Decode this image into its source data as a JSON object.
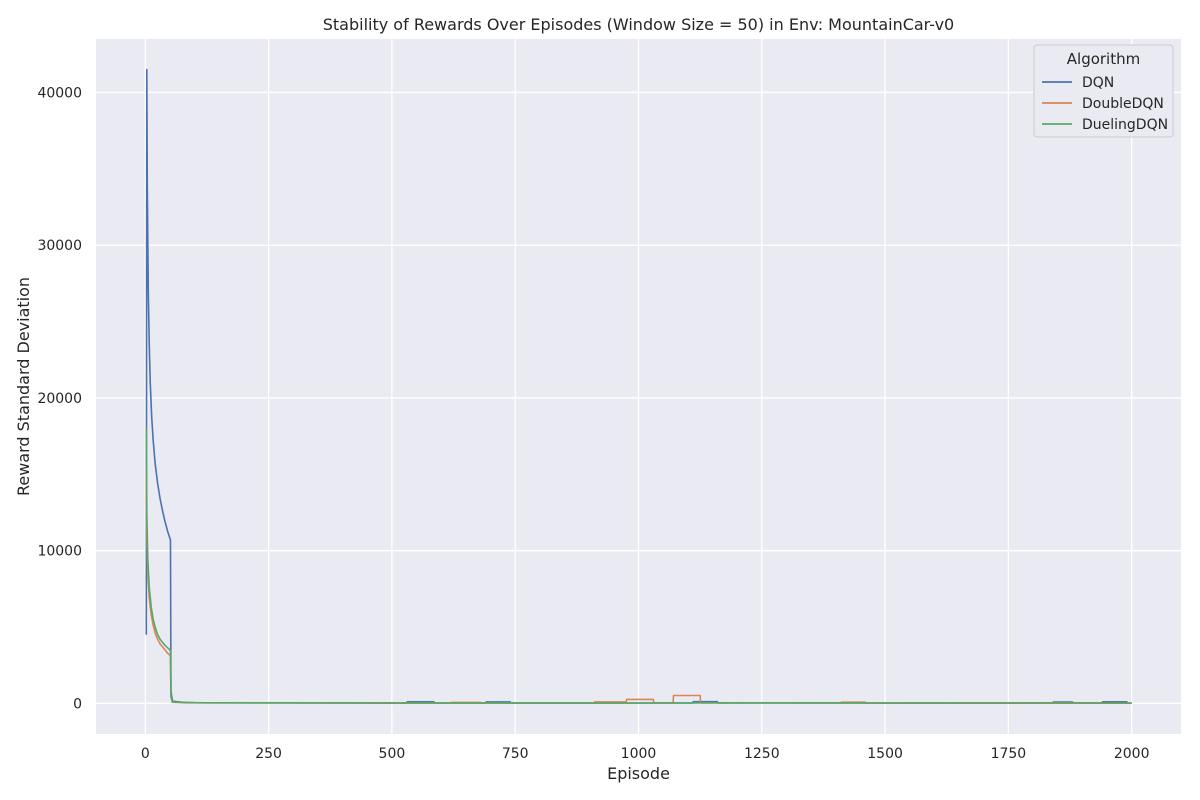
{
  "chart_data": {
    "type": "line",
    "title": "Stability of Rewards Over Episodes (Window Size = 50) in Env: MountainCar-v0",
    "xlabel": "Episode",
    "ylabel": "Reward Standard Deviation",
    "xlim": [
      -100,
      2100
    ],
    "ylim": [
      -2000,
      43500
    ],
    "xticks": [
      0,
      250,
      500,
      750,
      1000,
      1250,
      1500,
      1750,
      2000
    ],
    "yticks": [
      0,
      10000,
      20000,
      30000,
      40000
    ],
    "grid": true,
    "legend": {
      "title": "Algorithm",
      "placement": "top-right"
    },
    "series": [
      {
        "name": "DQN",
        "color": "#4c72b0",
        "points": [
          [
            2,
            4500
          ],
          [
            3,
            41500
          ],
          [
            4,
            34000
          ],
          [
            6,
            27000
          ],
          [
            8,
            23500
          ],
          [
            10,
            21000
          ],
          [
            13,
            18700
          ],
          [
            16,
            17200
          ],
          [
            20,
            15700
          ],
          [
            25,
            14400
          ],
          [
            30,
            13400
          ],
          [
            35,
            12600
          ],
          [
            40,
            11900
          ],
          [
            45,
            11300
          ],
          [
            50,
            10800
          ],
          [
            51,
            10700
          ],
          [
            52,
            800
          ],
          [
            55,
            150
          ],
          [
            80,
            60
          ],
          [
            120,
            40
          ],
          [
            530,
            30
          ],
          [
            531,
            110
          ],
          [
            585,
            110
          ],
          [
            586,
            30
          ],
          [
            690,
            30
          ],
          [
            691,
            100
          ],
          [
            740,
            100
          ],
          [
            741,
            30
          ],
          [
            1110,
            30
          ],
          [
            1111,
            120
          ],
          [
            1160,
            120
          ],
          [
            1161,
            30
          ],
          [
            1840,
            30
          ],
          [
            1841,
            90
          ],
          [
            1880,
            90
          ],
          [
            1881,
            30
          ],
          [
            1940,
            30
          ],
          [
            1941,
            110
          ],
          [
            1990,
            110
          ],
          [
            1991,
            20
          ],
          [
            2000,
            20
          ]
        ]
      },
      {
        "name": "DoubleDQN",
        "color": "#dd8452",
        "points": [
          [
            2,
            15000
          ],
          [
            3,
            11000
          ],
          [
            5,
            8500
          ],
          [
            8,
            6900
          ],
          [
            12,
            5800
          ],
          [
            16,
            5100
          ],
          [
            20,
            4600
          ],
          [
            25,
            4200
          ],
          [
            30,
            3900
          ],
          [
            35,
            3700
          ],
          [
            40,
            3500
          ],
          [
            45,
            3300
          ],
          [
            50,
            3150
          ],
          [
            51,
            3100
          ],
          [
            52,
            400
          ],
          [
            55,
            80
          ],
          [
            80,
            40
          ],
          [
            200,
            40
          ],
          [
            620,
            30
          ],
          [
            621,
            70
          ],
          [
            680,
            70
          ],
          [
            681,
            30
          ],
          [
            910,
            30
          ],
          [
            911,
            100
          ],
          [
            975,
            100
          ],
          [
            976,
            260
          ],
          [
            1030,
            260
          ],
          [
            1031,
            40
          ],
          [
            1070,
            40
          ],
          [
            1071,
            520
          ],
          [
            1125,
            520
          ],
          [
            1126,
            40
          ],
          [
            1410,
            40
          ],
          [
            1411,
            80
          ],
          [
            1460,
            80
          ],
          [
            1461,
            20
          ],
          [
            2000,
            20
          ]
        ]
      },
      {
        "name": "DuelingDQN",
        "color": "#55a868",
        "points": [
          [
            2,
            18000
          ],
          [
            3,
            12500
          ],
          [
            5,
            9500
          ],
          [
            8,
            7600
          ],
          [
            12,
            6300
          ],
          [
            16,
            5500
          ],
          [
            20,
            5000
          ],
          [
            25,
            4500
          ],
          [
            30,
            4200
          ],
          [
            35,
            4000
          ],
          [
            40,
            3800
          ],
          [
            45,
            3650
          ],
          [
            50,
            3500
          ],
          [
            51,
            3450
          ],
          [
            52,
            500
          ],
          [
            55,
            100
          ],
          [
            100,
            50
          ],
          [
            250,
            40
          ],
          [
            500,
            25
          ],
          [
            1000,
            25
          ],
          [
            1250,
            40
          ],
          [
            1500,
            25
          ],
          [
            1850,
            40
          ],
          [
            2000,
            30
          ]
        ]
      }
    ]
  }
}
